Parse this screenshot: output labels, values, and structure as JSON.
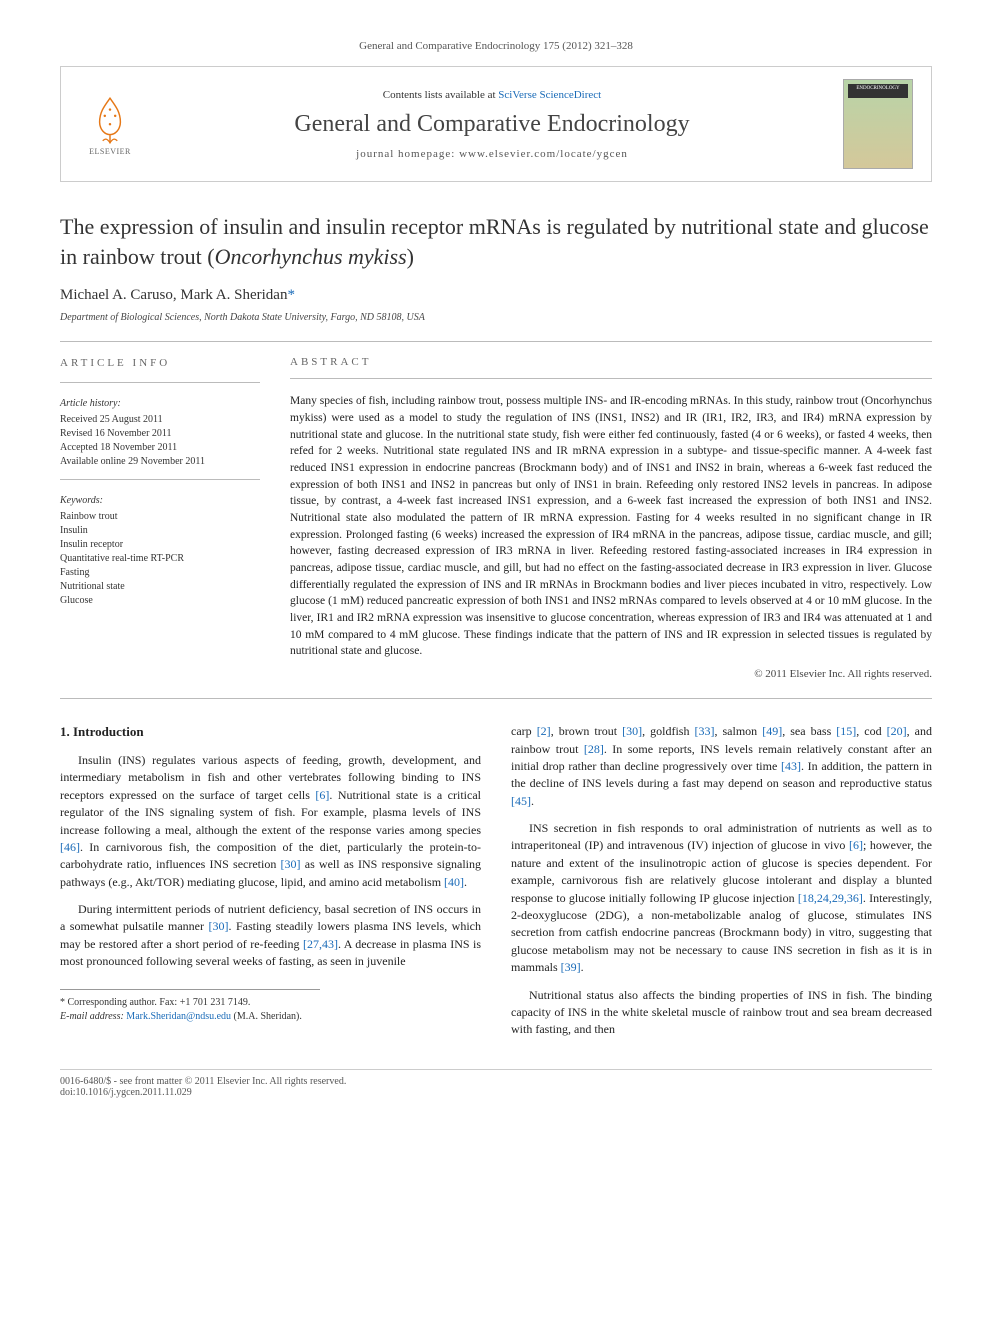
{
  "header": {
    "citation": "General and Comparative Endocrinology 175 (2012) 321–328"
  },
  "banner": {
    "elsevier_label": "ELSEVIER",
    "contents_prefix": "Contents lists available at ",
    "contents_link": "SciVerse ScienceDirect",
    "journal_name": "General and Comparative Endocrinology",
    "homepage_prefix": "journal homepage: ",
    "homepage_url": "www.elsevier.com/locate/ygcen"
  },
  "article": {
    "title_part1": "The expression of insulin and insulin receptor mRNAs is regulated by nutritional state and glucose in rainbow trout (",
    "title_italic": "Oncorhynchus mykiss",
    "title_part2": ")",
    "authors_text": "Michael A. Caruso, Mark A. Sheridan",
    "authors_marker": "*",
    "affiliation": "Department of Biological Sciences, North Dakota State University, Fargo, ND 58108, USA"
  },
  "info": {
    "head": "ARTICLE INFO",
    "history_head": "Article history:",
    "received": "Received 25 August 2011",
    "revised": "Revised 16 November 2011",
    "accepted": "Accepted 18 November 2011",
    "available": "Available online 29 November 2011",
    "keywords_head": "Keywords:",
    "keywords": [
      "Rainbow trout",
      "Insulin",
      "Insulin receptor",
      "Quantitative real-time RT-PCR",
      "Fasting",
      "Nutritional state",
      "Glucose"
    ]
  },
  "abstract": {
    "head": "ABSTRACT",
    "text": "Many species of fish, including rainbow trout, possess multiple INS- and IR-encoding mRNAs. In this study, rainbow trout (Oncorhynchus mykiss) were used as a model to study the regulation of INS (INS1, INS2) and IR (IR1, IR2, IR3, and IR4) mRNA expression by nutritional state and glucose. In the nutritional state study, fish were either fed continuously, fasted (4 or 6 weeks), or fasted 4 weeks, then refed for 2 weeks. Nutritional state regulated INS and IR mRNA expression in a subtype- and tissue-specific manner. A 4-week fast reduced INS1 expression in endocrine pancreas (Brockmann body) and of INS1 and INS2 in brain, whereas a 6-week fast reduced the expression of both INS1 and INS2 in pancreas but only of INS1 in brain. Refeeding only restored INS2 levels in pancreas. In adipose tissue, by contrast, a 4-week fast increased INS1 expression, and a 6-week fast increased the expression of both INS1 and INS2. Nutritional state also modulated the pattern of IR mRNA expression. Fasting for 4 weeks resulted in no significant change in IR expression. Prolonged fasting (6 weeks) increased the expression of IR4 mRNA in the pancreas, adipose tissue, cardiac muscle, and gill; however, fasting decreased expression of IR3 mRNA in liver. Refeeding restored fasting-associated increases in IR4 expression in pancreas, adipose tissue, cardiac muscle, and gill, but had no effect on the fasting-associated decrease in IR3 expression in liver. Glucose differentially regulated the expression of INS and IR mRNAs in Brockmann bodies and liver pieces incubated in vitro, respectively. Low glucose (1 mM) reduced pancreatic expression of both INS1 and INS2 mRNAs compared to levels observed at 4 or 10 mM glucose. In the liver, IR1 and IR2 mRNA expression was insensitive to glucose concentration, whereas expression of IR3 and IR4 was attenuated at 1 and 10 mM compared to 4 mM glucose. These findings indicate that the pattern of INS and IR expression in selected tissues is regulated by nutritional state and glucose.",
    "copyright": "© 2011 Elsevier Inc. All rights reserved."
  },
  "body": {
    "intro_head": "1. Introduction",
    "left_paras": [
      "Insulin (INS) regulates various aspects of feeding, growth, development, and intermediary metabolism in fish and other vertebrates following binding to INS receptors expressed on the surface of target cells [6]. Nutritional state is a critical regulator of the INS signaling system of fish. For example, plasma levels of INS increase following a meal, although the extent of the response varies among species [46]. In carnivorous fish, the composition of the diet, particularly the protein-to-carbohydrate ratio, influences INS secretion [30] as well as INS responsive signaling pathways (e.g., Akt/TOR) mediating glucose, lipid, and amino acid metabolism [40].",
      "During intermittent periods of nutrient deficiency, basal secretion of INS occurs in a somewhat pulsatile manner [30]. Fasting steadily lowers plasma INS levels, which may be restored after a short period of re-feeding [27,43]. A decrease in plasma INS is most pronounced following several weeks of fasting, as seen in juvenile"
    ],
    "right_paras": [
      "carp [2], brown trout [30], goldfish [33], salmon [49], sea bass [15], cod [20], and rainbow trout [28]. In some reports, INS levels remain relatively constant after an initial drop rather than decline progressively over time [43]. In addition, the pattern in the decline of INS levels during a fast may depend on season and reproductive status [45].",
      "INS secretion in fish responds to oral administration of nutrients as well as to intraperitoneal (IP) and intravenous (IV) injection of glucose in vivo [6]; however, the nature and extent of the insulinotropic action of glucose is species dependent. For example, carnivorous fish are relatively glucose intolerant and display a blunted response to glucose initially following IP glucose injection [18,24,29,36]. Interestingly, 2-deoxyglucose (2DG), a non-metabolizable analog of glucose, stimulates INS secretion from catfish endocrine pancreas (Brockmann body) in vitro, suggesting that glucose metabolism may not be necessary to cause INS secretion in fish as it is in mammals [39].",
      "Nutritional status also affects the binding properties of INS in fish. The binding capacity of INS in the white skeletal muscle of rainbow trout and sea bream decreased with fasting, and then"
    ],
    "refs": [
      "[6]",
      "[46]",
      "[30]",
      "[40]",
      "[27,43]",
      "[2]",
      "[33]",
      "[49]",
      "[15]",
      "[20]",
      "[28]",
      "[43]",
      "[45]",
      "[18,24,29,36]",
      "[39]"
    ]
  },
  "footnotes": {
    "corresponding": "* Corresponding author. Fax: +1 701 231 7149.",
    "email_label": "E-mail address: ",
    "email": "Mark.Sheridan@ndsu.edu",
    "email_owner": " (M.A. Sheridan)."
  },
  "footer": {
    "left": "0016-6480/$ - see front matter © 2011 Elsevier Inc. All rights reserved.",
    "doi": "doi:10.1016/j.ygcen.2011.11.029"
  },
  "colors": {
    "link": "#1a6bb8",
    "rule": "#bbbbbb",
    "text": "#222222"
  }
}
